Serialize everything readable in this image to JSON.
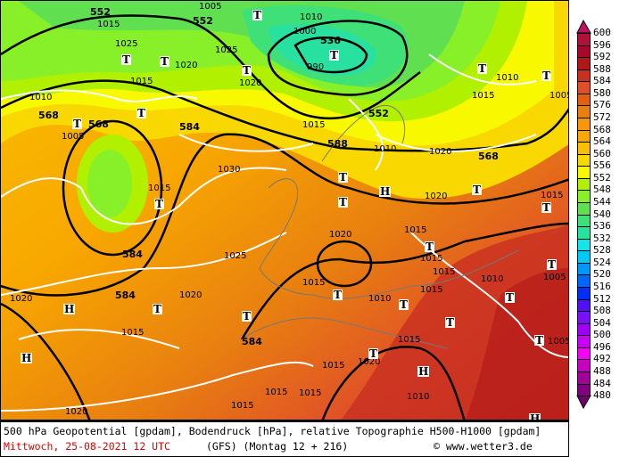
{
  "footer": {
    "line1": "500 hPa Geopotential [gpdam], Bodendruck [hPa], relative Topographie H500-H1000 [gpdam]",
    "date": "Mittwoch, 25-08-2021  12 UTC",
    "model": "(GFS)  (Montag 12 + 216)",
    "copyright": "© www.wetter3.de"
  },
  "legend": {
    "labels": [
      "600",
      "596",
      "592",
      "588",
      "584",
      "580",
      "576",
      "572",
      "568",
      "564",
      "560",
      "556",
      "552",
      "548",
      "544",
      "540",
      "536",
      "532",
      "528",
      "524",
      "520",
      "516",
      "512",
      "508",
      "504",
      "500",
      "496",
      "492",
      "488",
      "484",
      "480"
    ],
    "colors": [
      "#b0103a",
      "#a8082a",
      "#b01818",
      "#c83020",
      "#e05028",
      "#e06010",
      "#e88010",
      "#f89808",
      "#f8a800",
      "#f8c000",
      "#f8d800",
      "#f8f800",
      "#b0f000",
      "#88f028",
      "#60e050",
      "#40e078",
      "#28e0a0",
      "#10e8e8",
      "#00c8f8",
      "#0098f8",
      "#0068f8",
      "#0030f8",
      "#5010f8",
      "#7810f8",
      "#a000f8",
      "#c800f8",
      "#f800f8",
      "#c800c0",
      "#a00098",
      "#800080"
    ],
    "top_color": "#c01060",
    "bottom_color": "#700070"
  },
  "geopotential_labels": [
    "552",
    "552",
    "536",
    "552",
    "568",
    "568",
    "588",
    "584",
    "568",
    "584",
    "584",
    "584"
  ],
  "pressure_labels": [
    "1015",
    "1005",
    "1010",
    "1025",
    "1020",
    "1015",
    "1000",
    "990",
    "1010",
    "1005",
    "1015",
    "1025",
    "1020",
    "1015",
    "1030",
    "1020",
    "1015",
    "1010",
    "1010",
    "1015",
    "1020",
    "1025",
    "1020",
    "1015",
    "1010",
    "1005",
    "1015",
    "1015",
    "1020",
    "1020",
    "1015",
    "1015",
    "1015",
    "1010",
    "1005",
    "1020",
    "1015",
    "1015",
    "1015",
    "1005",
    "1015",
    "1010",
    "1020",
    "1015"
  ],
  "markers": [
    "T",
    "T",
    "T",
    "T",
    "T",
    "T",
    "T",
    "T",
    "T",
    "H",
    "T",
    "T",
    "T",
    "T",
    "T",
    "T",
    "H",
    "T",
    "H",
    "T",
    "T",
    "H",
    "T",
    "T",
    "T",
    "T",
    "T",
    "T",
    "H"
  ]
}
